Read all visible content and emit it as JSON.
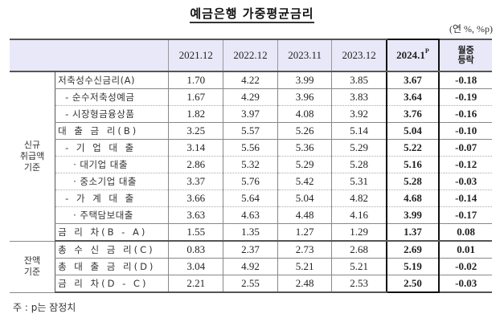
{
  "title": "예금은행 가중평균금리",
  "unit": "(연 %, %p)",
  "table": {
    "headers": {
      "cols": [
        "2021.12",
        "2022.12",
        "2023.11",
        "2023.12"
      ],
      "current": "2024.1",
      "current_sup": "P",
      "change_line1": "월중",
      "change_line2": "등락"
    },
    "groups": {
      "new": [
        "신규",
        "취급액",
        "기준"
      ],
      "balance": [
        "잔액",
        "기준"
      ]
    },
    "rows": [
      {
        "label": "저축성수신금리(A)",
        "values": [
          "1.70",
          "4.22",
          "3.99",
          "3.85"
        ],
        "current": "3.67",
        "change": "-0.18"
      },
      {
        "label": "- 순수저축성예금",
        "values": [
          "1.67",
          "4.29",
          "3.96",
          "3.83"
        ],
        "current": "3.64",
        "change": "-0.19"
      },
      {
        "label": "- 시장형금융상품",
        "values": [
          "1.82",
          "3.97",
          "4.08",
          "3.92"
        ],
        "current": "3.76",
        "change": "-0.16"
      },
      {
        "label": "대 출 금 리(B)",
        "values": [
          "3.25",
          "5.57",
          "5.26",
          "5.14"
        ],
        "current": "5.04",
        "change": "-0.10"
      },
      {
        "label": "- 기 업 대 출",
        "values": [
          "3.14",
          "5.56",
          "5.36",
          "5.29"
        ],
        "current": "5.22",
        "change": "-0.07"
      },
      {
        "label": "· 대기업 대출",
        "values": [
          "2.86",
          "5.32",
          "5.29",
          "5.28"
        ],
        "current": "5.16",
        "change": "-0.12"
      },
      {
        "label": "· 중소기업 대출",
        "values": [
          "3.37",
          "5.76",
          "5.42",
          "5.31"
        ],
        "current": "5.28",
        "change": "-0.03"
      },
      {
        "label": "- 가 계 대 출",
        "values": [
          "3.66",
          "5.64",
          "5.04",
          "4.82"
        ],
        "current": "4.68",
        "change": "-0.14"
      },
      {
        "label": "· 주택담보대출",
        "values": [
          "3.63",
          "4.63",
          "4.48",
          "4.16"
        ],
        "current": "3.99",
        "change": "-0.17"
      },
      {
        "label": "금 리 차(B - A)",
        "values": [
          "1.55",
          "1.35",
          "1.27",
          "1.29"
        ],
        "current": "1.37",
        "change": "0.08"
      },
      {
        "label": "총 수 신 금 리(C)",
        "values": [
          "0.83",
          "2.37",
          "2.73",
          "2.68"
        ],
        "current": "2.69",
        "change": "0.01"
      },
      {
        "label": "총 대 출 금 리(D)",
        "values": [
          "3.04",
          "4.92",
          "5.21",
          "5.21"
        ],
        "current": "5.19",
        "change": "-0.02"
      },
      {
        "label": "금 리 차(D - C)",
        "values": [
          "2.21",
          "2.55",
          "2.48",
          "2.53"
        ],
        "current": "2.50",
        "change": "-0.03"
      }
    ]
  },
  "note": "주 : p는 잠정치"
}
